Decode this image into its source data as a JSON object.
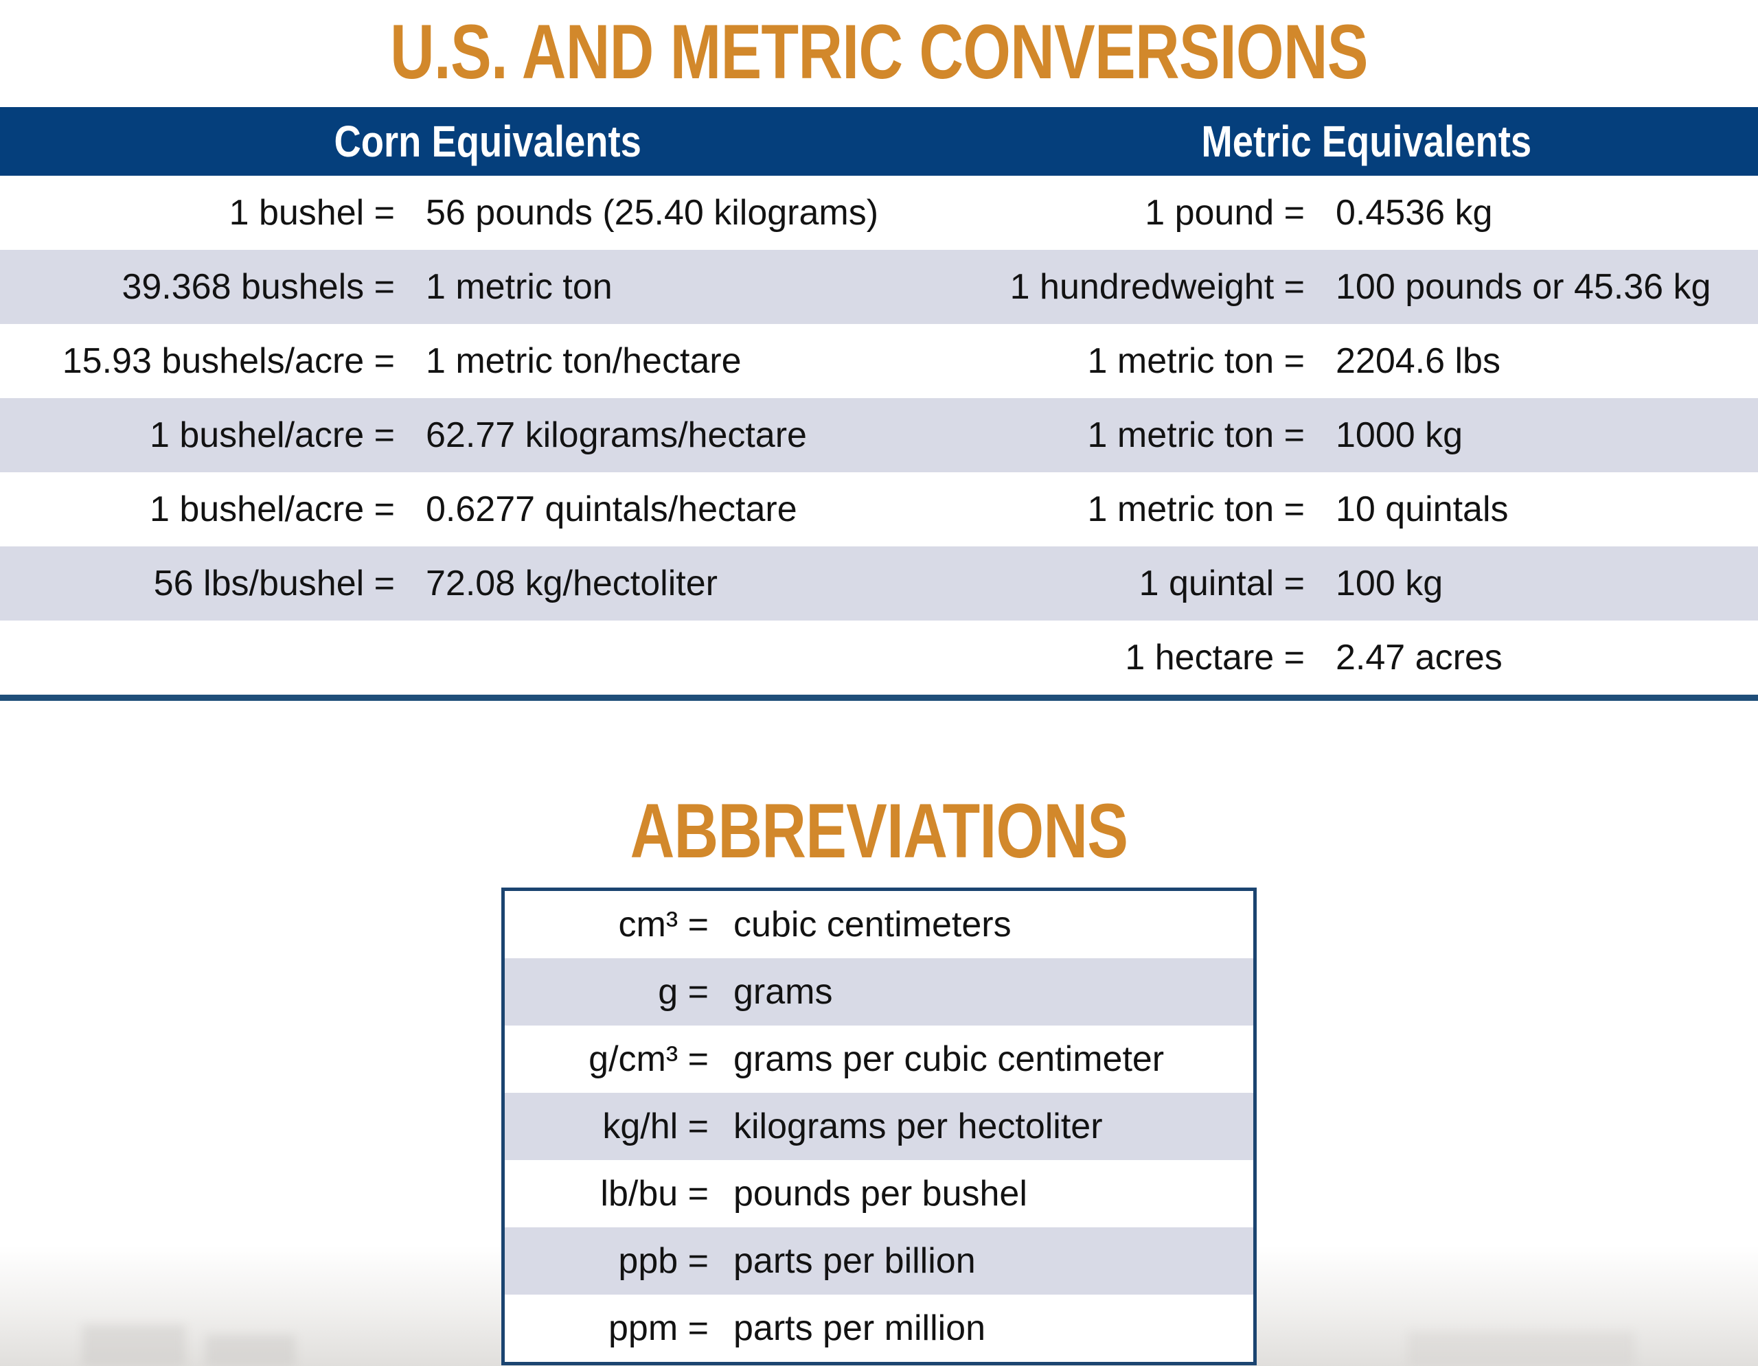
{
  "page": {
    "title": "U.S. AND METRIC CONVERSIONS",
    "abbreviations_title": "ABBREVIATIONS"
  },
  "colors": {
    "accent_orange": "#D2882B",
    "header_navy": "#053F7C",
    "divider_navy": "#1F4E79",
    "box_border_navy": "#1B4470",
    "row_shade": "#D8DAE6",
    "text": "#121212"
  },
  "conversions": {
    "columns": [
      {
        "label": "Corn Equivalents"
      },
      {
        "label": "Metric Equivalents"
      }
    ],
    "rows": [
      {
        "corn_label": "1 bushel =",
        "corn_value": "56 pounds (25.40 kilograms)",
        "metric_label": "1 pound =",
        "metric_value": "0.4536 kg"
      },
      {
        "corn_label": "39.368 bushels =",
        "corn_value": "1 metric ton",
        "metric_label": "1 hundredweight =",
        "metric_value": "100 pounds or 45.36 kg"
      },
      {
        "corn_label": "15.93 bushels/acre =",
        "corn_value": "1 metric ton/hectare",
        "metric_label": "1 metric ton =",
        "metric_value": "2204.6 lbs"
      },
      {
        "corn_label": "1 bushel/acre =",
        "corn_value": "62.77 kilograms/hectare",
        "metric_label": "1 metric ton =",
        "metric_value": "1000 kg"
      },
      {
        "corn_label": "1 bushel/acre =",
        "corn_value": "0.6277 quintals/hectare",
        "metric_label": "1 metric ton =",
        "metric_value": "10 quintals"
      },
      {
        "corn_label": "56 lbs/bushel =",
        "corn_value": "72.08 kg/hectoliter",
        "metric_label": "1 quintal =",
        "metric_value": "100 kg"
      },
      {
        "corn_label": "",
        "corn_value": "",
        "metric_label": "1 hectare =",
        "metric_value": "2.47 acres"
      }
    ]
  },
  "abbreviations": {
    "rows": [
      {
        "abbr": "cm³ =",
        "meaning": "cubic centimeters"
      },
      {
        "abbr": "g =",
        "meaning": "grams"
      },
      {
        "abbr": "g/cm³ =",
        "meaning": "grams per cubic centimeter"
      },
      {
        "abbr": "kg/hl =",
        "meaning": "kilograms per hectoliter"
      },
      {
        "abbr": "lb/bu =",
        "meaning": "pounds per bushel"
      },
      {
        "abbr": "ppb =",
        "meaning": "parts per billion"
      },
      {
        "abbr": "ppm =",
        "meaning": "parts per million"
      }
    ]
  }
}
